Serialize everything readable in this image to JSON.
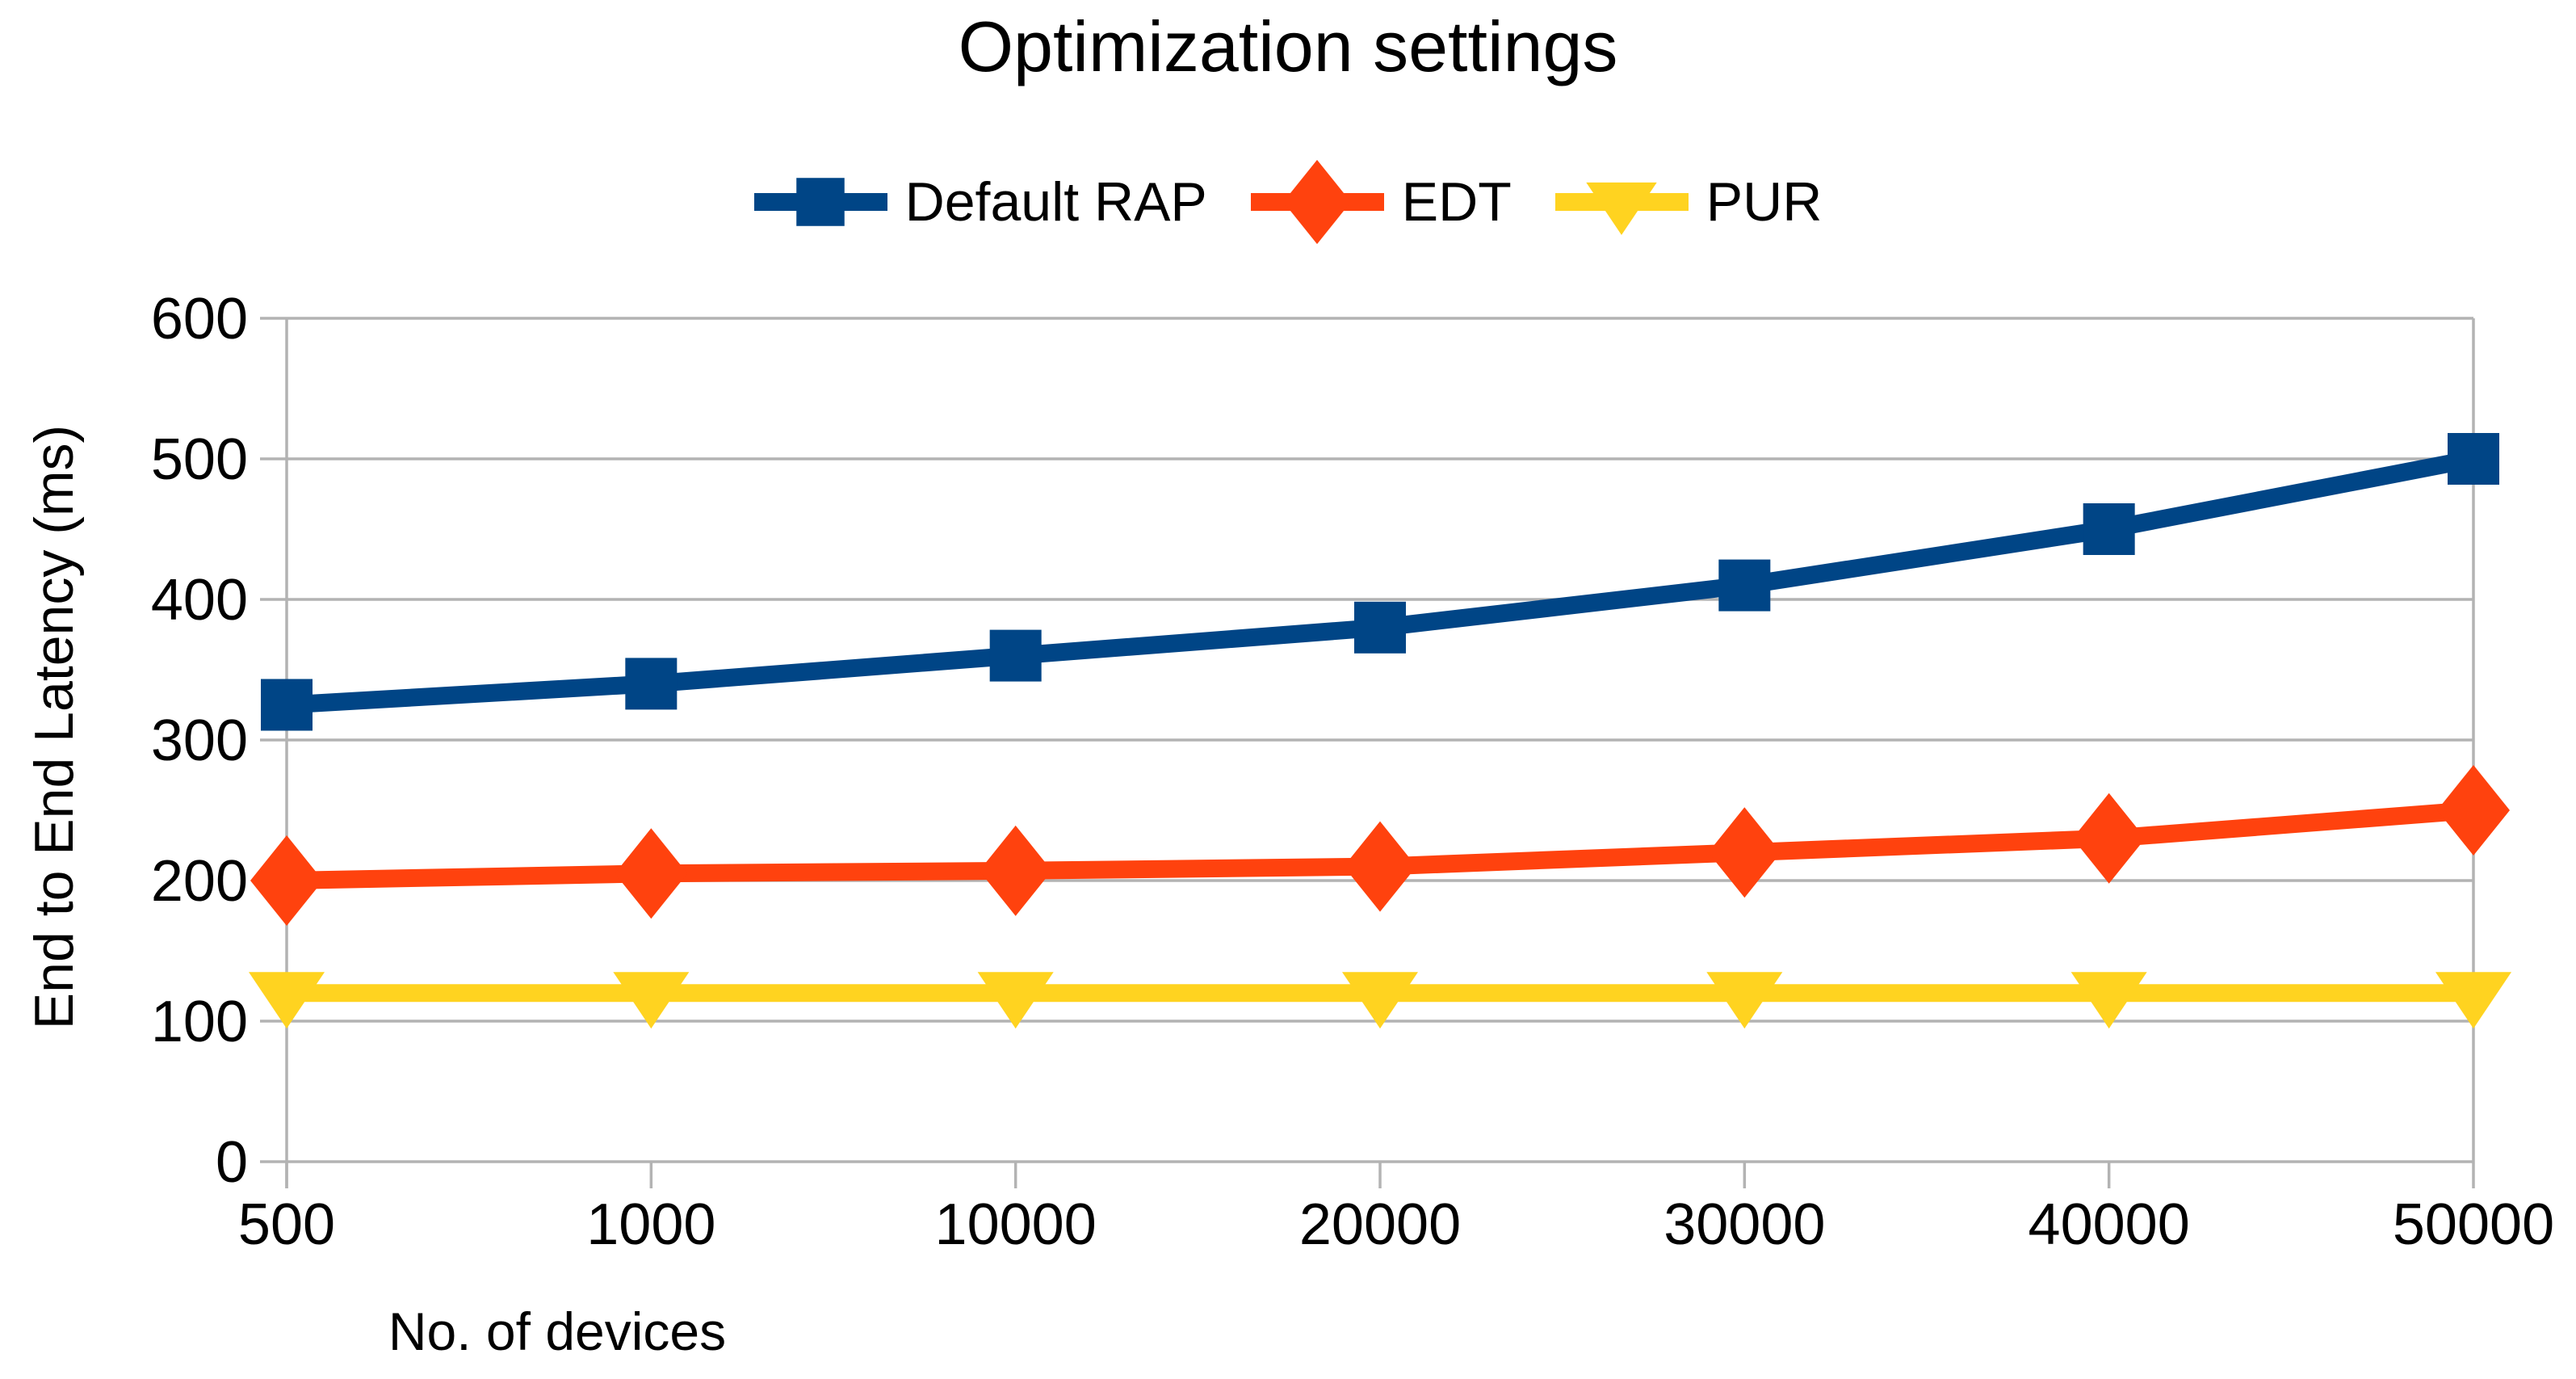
{
  "chart_data": {
    "type": "line",
    "title": "Optimization settings",
    "xlabel": "No. of devices",
    "ylabel": "End to End Latency (ms)",
    "categories": [
      "500",
      "1000",
      "10000",
      "20000",
      "30000",
      "40000",
      "50000"
    ],
    "yticks": [
      0,
      100,
      200,
      300,
      400,
      500,
      600
    ],
    "ylim": [
      0,
      600
    ],
    "grid": "horizontal",
    "legend_position": "top-center",
    "background": "#ffffff",
    "axis_color": "#b3b3b3",
    "text_color": "#000000",
    "series": [
      {
        "name": "Default RAP",
        "color": "#004586",
        "marker": "square",
        "values": [
          325,
          340,
          360,
          380,
          410,
          450,
          500
        ]
      },
      {
        "name": "EDT",
        "color": "#ff420e",
        "marker": "diamond",
        "values": [
          200,
          205,
          207,
          210,
          220,
          230,
          250
        ]
      },
      {
        "name": "PUR",
        "color": "#ffd320",
        "marker": "triangle-down",
        "values": [
          120,
          120,
          120,
          120,
          120,
          120,
          120
        ]
      }
    ]
  }
}
